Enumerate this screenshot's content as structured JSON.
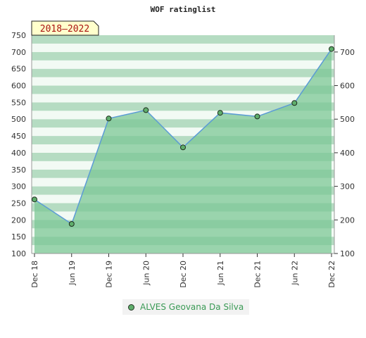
{
  "chart_data": {
    "type": "line",
    "title": "WOF ratinglist",
    "period_badge": "2018–2022",
    "categories": [
      "Dec 18",
      "Jun 19",
      "Dec 19",
      "Jun 20",
      "Dec 20",
      "Jun 21",
      "Dec 21",
      "Jun 22",
      "Dec 22"
    ],
    "series": [
      {
        "name": "ALVES Geovana Da Silva",
        "values": [
          261,
          188,
          502,
          527,
          416,
          519,
          508,
          548,
          709
        ]
      }
    ],
    "ylim": [
      100,
      750
    ],
    "left_ticks": [
      100,
      150,
      200,
      250,
      300,
      350,
      400,
      450,
      500,
      550,
      600,
      650,
      700,
      750
    ],
    "right_ticks": [
      100,
      200,
      300,
      400,
      500,
      600,
      700
    ],
    "colors": {
      "line": "#5b9bd5",
      "fill": "#7cc795",
      "marker": "#5fae6c",
      "band_dark": "#b5dcc2",
      "band_light": "#f2faf4",
      "legend_text": "#3a9a55"
    }
  }
}
